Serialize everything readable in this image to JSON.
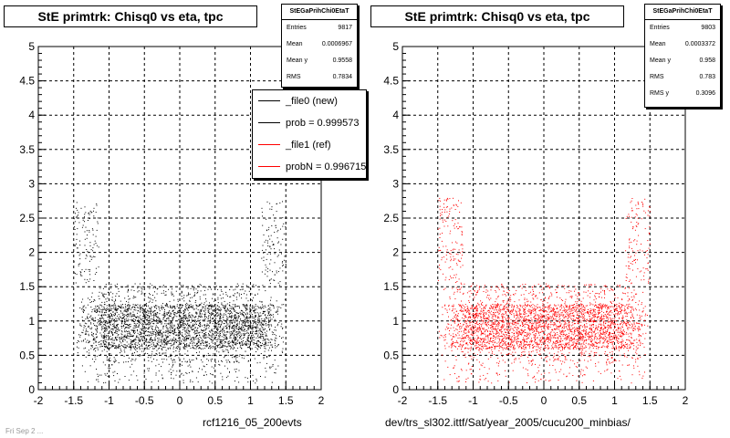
{
  "chart_data": [
    {
      "type": "scatter",
      "title": "StE primtrk: Chisq0 vs eta, tpc",
      "xlabel": "rcf1216_05_200evts",
      "ylabel": "",
      "xlim": [
        -2,
        2
      ],
      "ylim": [
        0,
        5
      ],
      "xticks": [
        "-2",
        "-1.5",
        "-1",
        "-0.5",
        "0",
        "0.5",
        "1",
        "1.5",
        "2"
      ],
      "yticks": [
        "0",
        "0.5",
        "1",
        "1.5",
        "2",
        "2.5",
        "3",
        "3.5",
        "4",
        "4.5",
        "5"
      ],
      "grid": true,
      "marker_color": "#000000",
      "point_count_shown": 9817,
      "distribution": {
        "x_range": [
          -1.5,
          1.5
        ],
        "y_core": [
          0.6,
          1.25
        ],
        "y_body": [
          0.4,
          1.55
        ],
        "y_sparse_max": 2.75
      },
      "stats": {
        "name": "StEGaPrihChi0EtaT",
        "rows": [
          {
            "label": "Entries",
            "value": "9817"
          },
          {
            "label": "Mean",
            "value": "0.0006967"
          },
          {
            "label": "Mean y",
            "value": "0.9558"
          },
          {
            "label": "RMS",
            "value": "0.7834"
          }
        ]
      },
      "legend": {
        "placement": "right",
        "entries": [
          {
            "label": "_file0 (new)",
            "color": "#000000"
          },
          {
            "label": "prob = 0.999573",
            "color": "#000000"
          },
          {
            "label": "_file1 (ref)",
            "color": "#ff0000"
          },
          {
            "label": "probN = 0.996715",
            "color": "#ff0000"
          }
        ]
      }
    },
    {
      "type": "scatter",
      "title": "StE primtrk: Chisq0 vs eta, tpc",
      "xlabel": "dev/trs_sl302.ittf/Sat/year_2005/cucu200_minbias/",
      "ylabel": "",
      "xlim": [
        -2,
        2
      ],
      "ylim": [
        0,
        5
      ],
      "xticks": [
        "-2",
        "-1.5",
        "-1",
        "-0.5",
        "0",
        "0.5",
        "1",
        "1.5",
        "2"
      ],
      "yticks": [
        "0",
        "0.5",
        "1",
        "1.5",
        "2",
        "2.5",
        "3",
        "3.5",
        "4",
        "4.5",
        "5"
      ],
      "grid": true,
      "marker_color": "#ff0000",
      "point_count_shown": 9803,
      "distribution": {
        "x_range": [
          -1.5,
          1.5
        ],
        "y_core": [
          0.6,
          1.25
        ],
        "y_body": [
          0.4,
          1.55
        ],
        "y_sparse_max": 2.8
      },
      "stats": {
        "name": "StEGaPrihChi0EtaT",
        "rows": [
          {
            "label": "Entries",
            "value": "9803"
          },
          {
            "label": "Mean",
            "value": "0.0003372"
          },
          {
            "label": "Mean y",
            "value": "0.958"
          },
          {
            "label": "RMS",
            "value": "0.783"
          },
          {
            "label": "RMS y",
            "value": "0.3096"
          }
        ]
      }
    }
  ],
  "footer_stamp": "Fri Sep 2 ..."
}
